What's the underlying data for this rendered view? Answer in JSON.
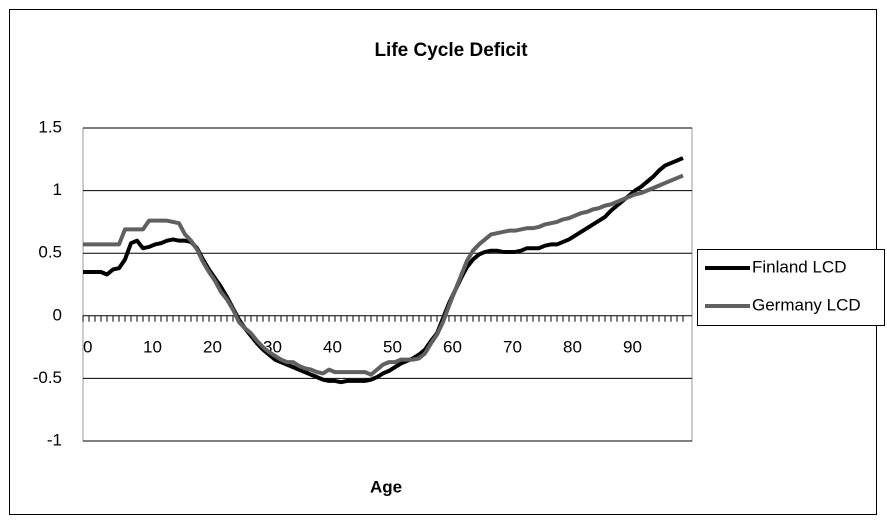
{
  "chart_data": {
    "type": "line",
    "title": "Life Cycle Deficit",
    "x_label": "Age",
    "categories": [
      0,
      null,
      null,
      null,
      null,
      null,
      null,
      null,
      null,
      null,
      10,
      null,
      null,
      null,
      null,
      null,
      null,
      null,
      null,
      null,
      20,
      null,
      null,
      null,
      null,
      null,
      null,
      null,
      null,
      null,
      30,
      null,
      null,
      null,
      null,
      null,
      null,
      null,
      null,
      null,
      40,
      null,
      null,
      null,
      null,
      null,
      null,
      null,
      null,
      null,
      50,
      null,
      null,
      null,
      null,
      null,
      null,
      null,
      null,
      null,
      60,
      null,
      null,
      null,
      null,
      null,
      null,
      null,
      null,
      null,
      70,
      null,
      null,
      null,
      null,
      null,
      null,
      null,
      null,
      null,
      80,
      null,
      null,
      null,
      null,
      null,
      null,
      null,
      null,
      null,
      90,
      null,
      null,
      null,
      null,
      null,
      null,
      null,
      null,
      null,
      null
    ],
    "series": [
      {
        "name": "Finland LCD",
        "color": "#000000",
        "values": [
          0.35,
          0.35,
          0.35,
          0.35,
          0.33,
          0.37,
          0.38,
          0.45,
          0.58,
          0.6,
          0.54,
          0.55,
          0.57,
          0.58,
          0.6,
          0.61,
          0.6,
          0.6,
          0.59,
          0.54,
          0.45,
          0.37,
          0.3,
          0.23,
          0.15,
          0.06,
          -0.03,
          -0.1,
          -0.16,
          -0.22,
          -0.27,
          -0.31,
          -0.35,
          -0.37,
          -0.39,
          -0.41,
          -0.43,
          -0.45,
          -0.47,
          -0.49,
          -0.51,
          -0.52,
          -0.52,
          -0.53,
          -0.52,
          -0.52,
          -0.52,
          -0.52,
          -0.51,
          -0.49,
          -0.46,
          -0.44,
          -0.41,
          -0.38,
          -0.36,
          -0.34,
          -0.31,
          -0.27,
          -0.2,
          -0.14,
          -0.02,
          0.1,
          0.2,
          0.3,
          0.39,
          0.45,
          0.49,
          0.51,
          0.52,
          0.52,
          0.51,
          0.51,
          0.51,
          0.52,
          0.54,
          0.54,
          0.54,
          0.56,
          0.57,
          0.57,
          0.59,
          0.61,
          0.64,
          0.67,
          0.7,
          0.73,
          0.76,
          0.79,
          0.84,
          0.88,
          0.92,
          0.96,
          1.0,
          1.03,
          1.07,
          1.11,
          1.16,
          1.2,
          1.22,
          1.24,
          1.26
        ]
      },
      {
        "name": "Germany LCD",
        "color": "#606060",
        "values": [
          0.57,
          0.57,
          0.57,
          0.57,
          0.57,
          0.57,
          0.57,
          0.69,
          0.69,
          0.69,
          0.69,
          0.76,
          0.76,
          0.76,
          0.76,
          0.75,
          0.74,
          0.65,
          0.6,
          0.53,
          0.43,
          0.35,
          0.28,
          0.19,
          0.13,
          0.05,
          -0.05,
          -0.1,
          -0.14,
          -0.2,
          -0.25,
          -0.29,
          -0.32,
          -0.35,
          -0.37,
          -0.37,
          -0.4,
          -0.42,
          -0.43,
          -0.45,
          -0.46,
          -0.43,
          -0.45,
          -0.45,
          -0.45,
          -0.45,
          -0.45,
          -0.45,
          -0.47,
          -0.43,
          -0.39,
          -0.37,
          -0.37,
          -0.35,
          -0.35,
          -0.35,
          -0.34,
          -0.3,
          -0.22,
          -0.15,
          -0.05,
          0.08,
          0.2,
          0.32,
          0.44,
          0.52,
          0.57,
          0.61,
          0.65,
          0.66,
          0.67,
          0.68,
          0.68,
          0.69,
          0.7,
          0.7,
          0.71,
          0.73,
          0.74,
          0.75,
          0.77,
          0.78,
          0.8,
          0.82,
          0.83,
          0.85,
          0.86,
          0.88,
          0.89,
          0.91,
          0.93,
          0.95,
          0.97,
          0.98,
          1.0,
          1.02,
          1.04,
          1.06,
          1.08,
          1.1,
          1.12
        ]
      }
    ],
    "ylim": [
      -1,
      1.5
    ],
    "yticks": [
      1.5,
      1,
      0.5,
      0,
      -0.5,
      -1
    ],
    "grid": true,
    "legend": "right"
  }
}
